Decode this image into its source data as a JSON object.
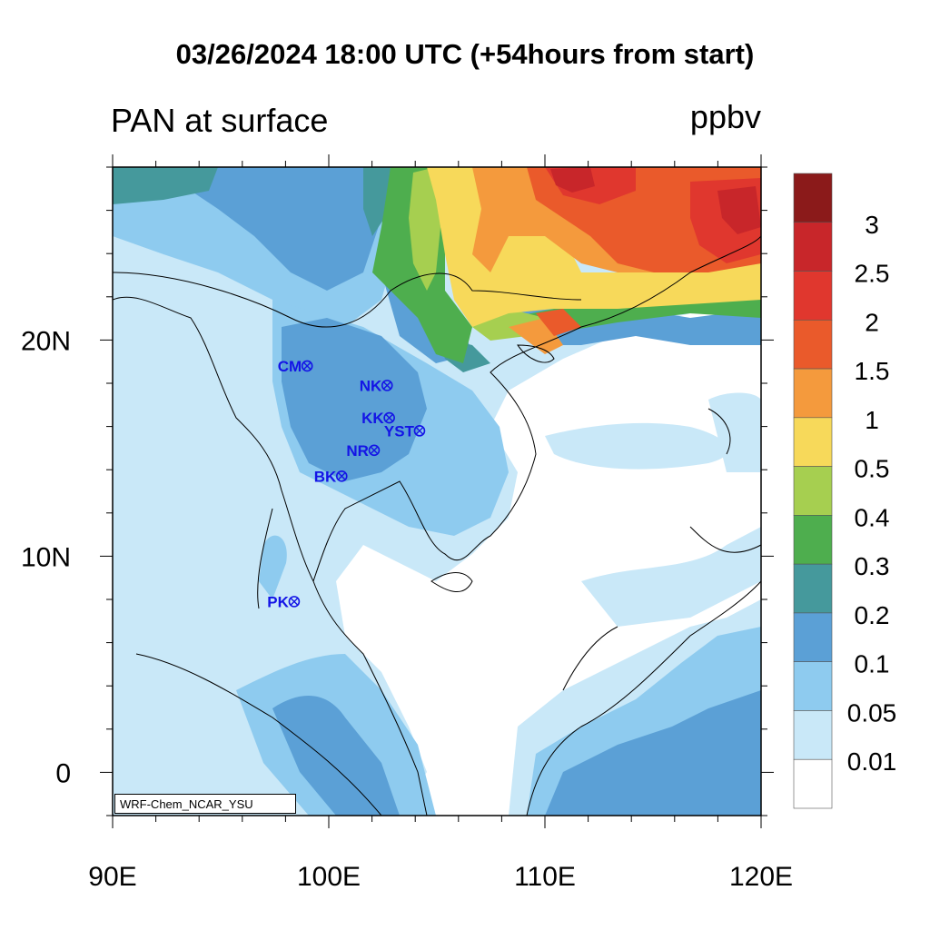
{
  "title": "03/26/2024 18:00 UTC (+54hours from start)",
  "subtitle_left": "PAN at surface",
  "units": "ppbv",
  "credit": "WRF-Chem_NCAR_YSU",
  "x_ticks": [
    {
      "label": "90E",
      "value": 90
    },
    {
      "label": "100E",
      "value": 100
    },
    {
      "label": "110E",
      "value": 110
    },
    {
      "label": "120E",
      "value": 120
    }
  ],
  "y_ticks": [
    {
      "label": "20N",
      "value": 20
    },
    {
      "label": "10N",
      "value": 10
    },
    {
      "label": "0",
      "value": 0
    }
  ],
  "legend": {
    "labels": [
      "3",
      "2.5",
      "2",
      "1.5",
      "1",
      "0.5",
      "0.4",
      "0.3",
      "0.2",
      "0.1",
      "0.05",
      "0.01"
    ],
    "colors": [
      "#8b1a1a",
      "#c8262a",
      "#e0372e",
      "#ea5a2b",
      "#f49a3d",
      "#f7d95a",
      "#a6cf50",
      "#4eae4e",
      "#45999c",
      "#5ba0d6",
      "#8ecbef",
      "#c9e8f8",
      "#ffffff"
    ]
  },
  "stations": [
    {
      "name": "CM",
      "lon": 99.0,
      "lat": 18.8
    },
    {
      "name": "NK",
      "lon": 102.7,
      "lat": 17.9
    },
    {
      "name": "KK",
      "lon": 102.8,
      "lat": 16.4
    },
    {
      "name": "YST",
      "lon": 104.2,
      "lat": 15.8
    },
    {
      "name": "NR",
      "lon": 102.1,
      "lat": 14.9
    },
    {
      "name": "BK",
      "lon": 100.6,
      "lat": 13.7
    },
    {
      "name": "PK",
      "lon": 98.4,
      "lat": 7.9
    }
  ]
}
